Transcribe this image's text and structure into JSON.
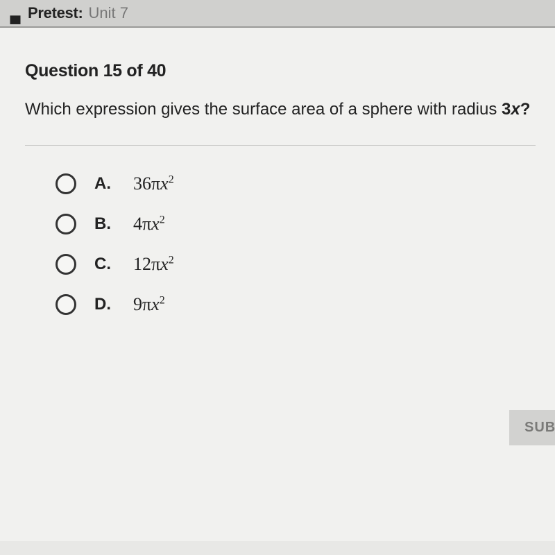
{
  "header": {
    "label": "Pretest:",
    "value": "Unit 7"
  },
  "question": {
    "number_text": "Question 15 of 40",
    "prompt_prefix": "Which expression gives the surface area of a sphere with radius ",
    "prompt_var_coef": "3",
    "prompt_var_sym": "x",
    "prompt_suffix": "?"
  },
  "options": [
    {
      "letter": "A.",
      "coef": "36",
      "pi": "π",
      "var": "x",
      "exp": "2"
    },
    {
      "letter": "B.",
      "coef": "4",
      "pi": "π",
      "var": "x",
      "exp": "2"
    },
    {
      "letter": "C.",
      "coef": "12",
      "pi": "π",
      "var": "x",
      "exp": "2"
    },
    {
      "letter": "D.",
      "coef": "9",
      "pi": "π",
      "var": "x",
      "exp": "2"
    }
  ],
  "submit_label": "SUBMIT"
}
